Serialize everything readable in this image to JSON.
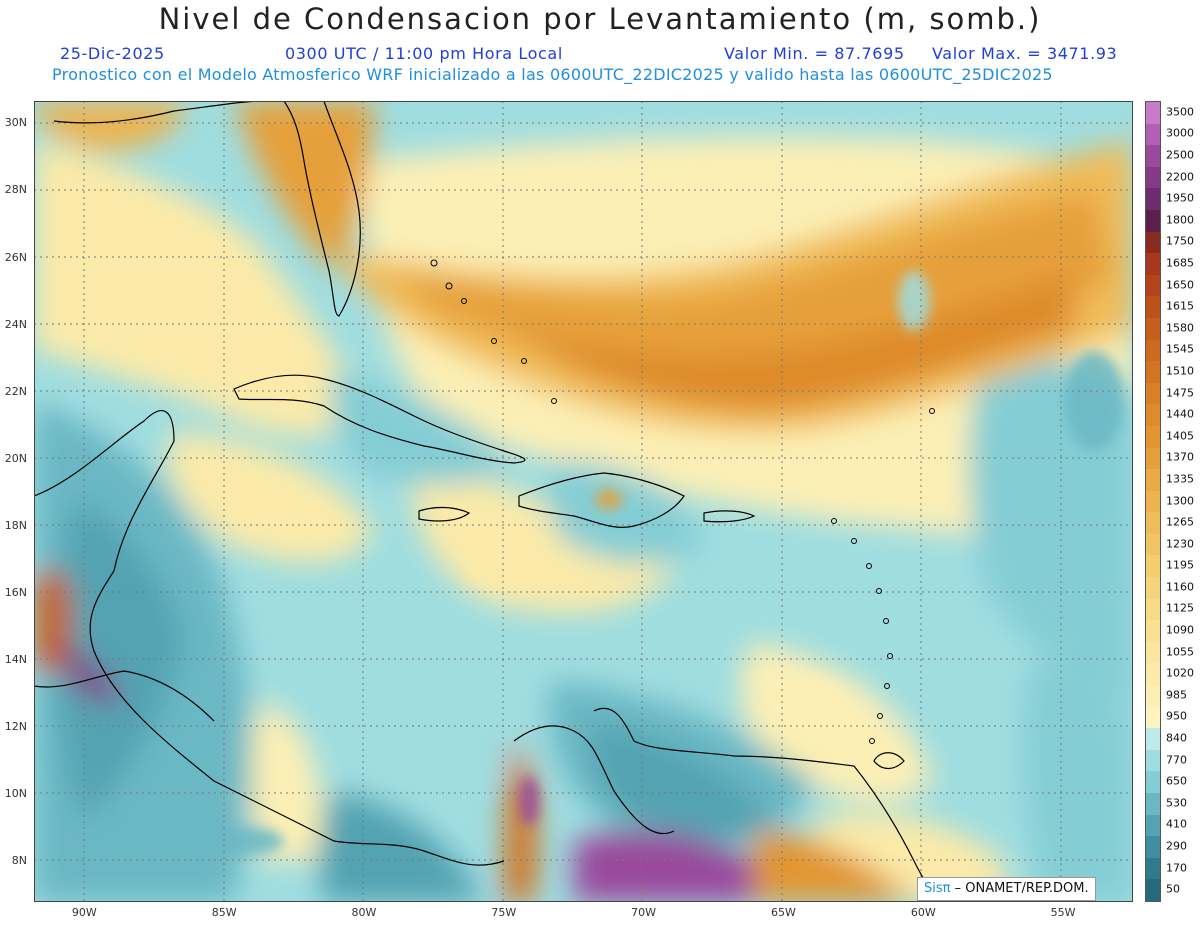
{
  "title": "Nivel de Condensacion por Levantamiento (m, somb.)",
  "date": "25-Dic-2025",
  "time": "0300 UTC / 11:00 pm Hora Local",
  "min_label": "Valor Min. = 87.7695",
  "max_label": "Valor Max. = 3471.93",
  "forecast_info": "Pronostico con el Modelo Atmosferico WRF inicializado a las 0600UTC_22DIC2025 y valido hasta las  0600UTC_25DIC2025",
  "logo_sis": "Sisπ",
  "logo_org": "– ONAMET/REP.DOM.",
  "lat_labels": [
    "30N",
    "28N",
    "26N",
    "24N",
    "22N",
    "20N",
    "18N",
    "16N",
    "14N",
    "12N",
    "10N",
    "8N"
  ],
  "lat_values": [
    30,
    28,
    26,
    24,
    22,
    20,
    18,
    16,
    14,
    12,
    10,
    8
  ],
  "lon_labels": [
    "90W",
    "85W",
    "80W",
    "75W",
    "70W",
    "65W",
    "60W",
    "55W"
  ],
  "lon_values": [
    -90,
    -85,
    -80,
    -75,
    -70,
    -65,
    -60,
    -55
  ],
  "map_extent": {
    "lon_min": -91.8,
    "lon_max": -52.5,
    "lat_min": 6.8,
    "lat_max": 30.7
  },
  "colorbar": {
    "labels": [
      "3500",
      "3000",
      "2500",
      "2200",
      "1950",
      "1800",
      "1750",
      "1685",
      "1650",
      "1615",
      "1580",
      "1545",
      "1510",
      "1475",
      "1440",
      "1405",
      "1370",
      "1335",
      "1300",
      "1265",
      "1230",
      "1195",
      "1160",
      "1125",
      "1090",
      "1055",
      "1020",
      "985",
      "950",
      "840",
      "770",
      "650",
      "530",
      "410",
      "290",
      "170",
      "50"
    ],
    "colors": [
      "#c77bc9",
      "#b25fb5",
      "#9a4a9c",
      "#843b86",
      "#6e2c70",
      "#5a1f4a",
      "#8a2b1f",
      "#a8381d",
      "#b4441c",
      "#bd511c",
      "#c65e1d",
      "#cc6a1f",
      "#d27522",
      "#d98026",
      "#de8b2b",
      "#e29632",
      "#e6a03b",
      "#eaaa45",
      "#edb34f",
      "#f0bc59",
      "#f2c564",
      "#f4cd6f",
      "#f6d47b",
      "#f8db87",
      "#f9e193",
      "#fae69e",
      "#fbeaa9",
      "#fcefb5",
      "#fdf3c0",
      "#bfeaea",
      "#9fdde0",
      "#84cdd4",
      "#6ab8c4",
      "#53a3b2",
      "#3f8e9f",
      "#2f7b8c",
      "#256a7a"
    ]
  }
}
